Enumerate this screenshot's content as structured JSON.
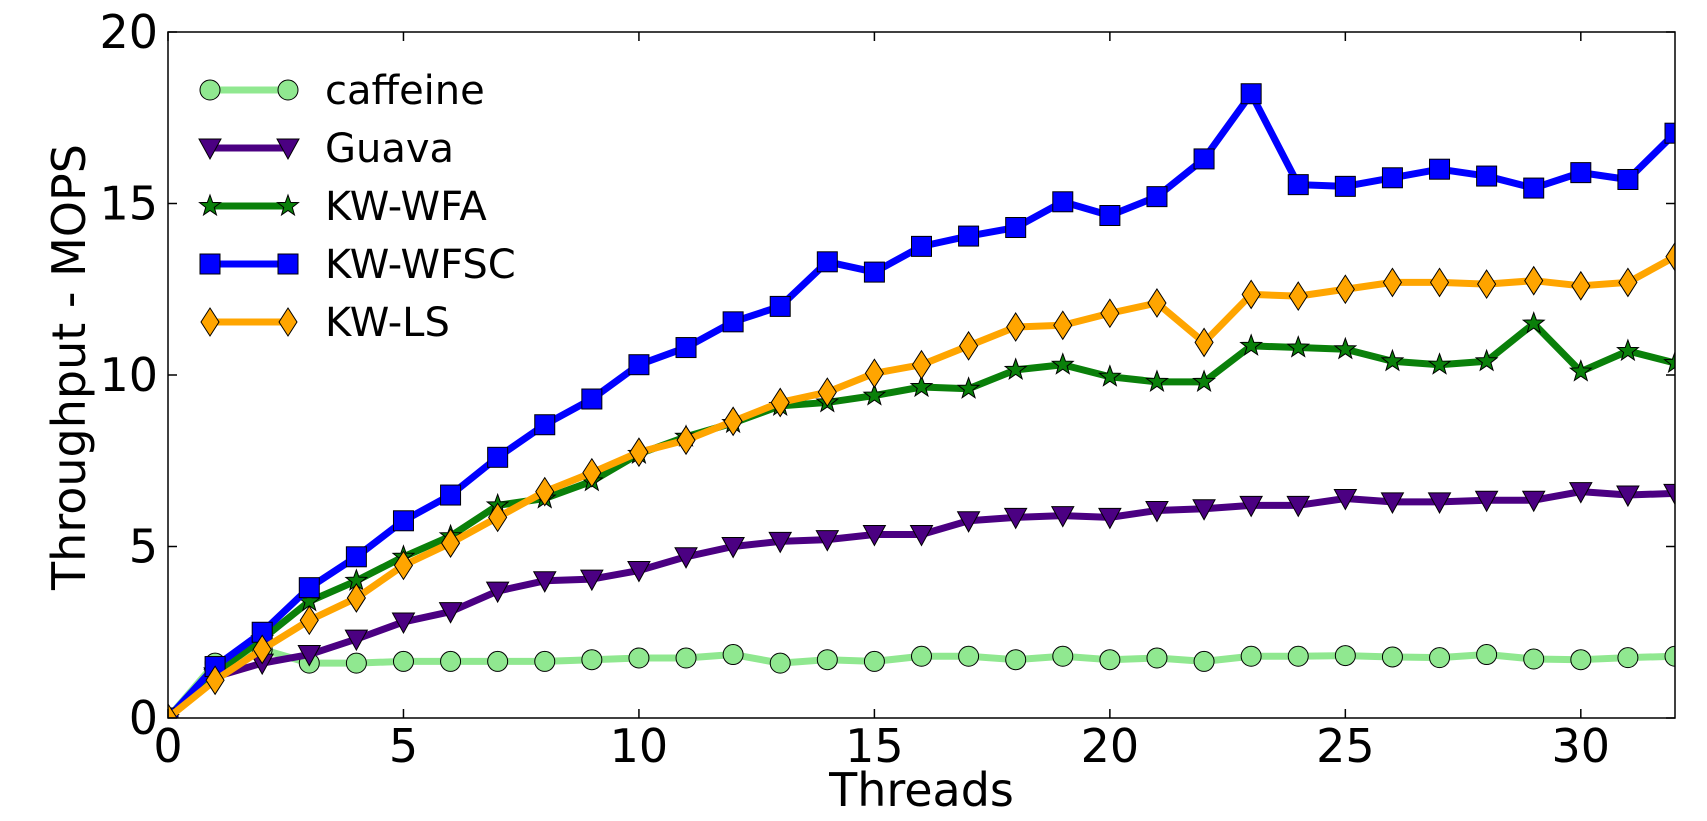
{
  "chart_data": {
    "type": "line",
    "title": "",
    "xlabel": "Threads",
    "ylabel": "Throughput - MOPS",
    "xlim": [
      0,
      32
    ],
    "ylim": [
      0,
      20
    ],
    "xticks": [
      0,
      5,
      10,
      15,
      20,
      25,
      30
    ],
    "yticks": [
      0,
      5,
      10,
      15,
      20
    ],
    "legend_position": "top-left",
    "x": [
      0,
      1,
      2,
      3,
      4,
      5,
      6,
      7,
      8,
      9,
      10,
      11,
      12,
      13,
      14,
      15,
      16,
      17,
      18,
      19,
      20,
      21,
      22,
      23,
      24,
      25,
      26,
      27,
      28,
      29,
      30,
      31,
      32
    ],
    "series": [
      {
        "name": "caffeine",
        "color": "#90e890",
        "marker": "circle",
        "values": [
          0,
          1.6,
          2.0,
          1.6,
          1.6,
          1.65,
          1.65,
          1.65,
          1.65,
          1.7,
          1.75,
          1.75,
          1.85,
          1.6,
          1.7,
          1.65,
          1.8,
          1.8,
          1.7,
          1.8,
          1.7,
          1.75,
          1.65,
          1.8,
          1.8,
          1.82,
          1.78,
          1.76,
          1.85,
          1.72,
          1.7,
          1.76,
          1.8
        ]
      },
      {
        "name": "Guava",
        "color": "#4b0082",
        "marker": "triangle-down",
        "values": [
          0,
          1.2,
          1.6,
          1.85,
          2.3,
          2.8,
          3.1,
          3.7,
          4.0,
          4.05,
          4.3,
          4.7,
          5.0,
          5.15,
          5.2,
          5.35,
          5.35,
          5.75,
          5.85,
          5.9,
          5.85,
          6.05,
          6.1,
          6.2,
          6.2,
          6.4,
          6.3,
          6.3,
          6.35,
          6.35,
          6.6,
          6.5,
          6.55
        ]
      },
      {
        "name": "KW-WFA",
        "color": "#0a800a",
        "marker": "star",
        "values": [
          0,
          1.3,
          2.3,
          3.4,
          4.0,
          4.7,
          5.3,
          6.2,
          6.4,
          6.9,
          7.7,
          8.2,
          8.6,
          9.1,
          9.2,
          9.4,
          9.65,
          9.6,
          10.15,
          10.3,
          9.95,
          9.8,
          9.8,
          10.85,
          10.8,
          10.75,
          10.4,
          10.3,
          10.4,
          11.5,
          10.1,
          10.7,
          10.35
        ]
      },
      {
        "name": "KW-WFSC",
        "color": "#0000ff",
        "marker": "square",
        "values": [
          0,
          1.5,
          2.5,
          3.8,
          4.7,
          5.75,
          6.5,
          7.6,
          8.55,
          9.3,
          10.3,
          10.8,
          11.55,
          12.0,
          13.3,
          13.0,
          13.75,
          14.05,
          14.3,
          15.05,
          14.65,
          15.2,
          16.3,
          18.2,
          15.55,
          15.5,
          15.75,
          16.0,
          15.8,
          15.45,
          15.9,
          15.7,
          17.05
        ]
      },
      {
        "name": "KW-LS",
        "color": "#ffa500",
        "marker": "diamond",
        "values": [
          0,
          1.1,
          2.0,
          2.85,
          3.5,
          4.45,
          5.1,
          5.85,
          6.6,
          7.15,
          7.75,
          8.1,
          8.65,
          9.2,
          9.5,
          10.05,
          10.3,
          10.85,
          11.4,
          11.45,
          11.8,
          12.1,
          10.95,
          12.35,
          12.3,
          12.5,
          12.7,
          12.7,
          12.65,
          12.75,
          12.6,
          12.7,
          13.45
        ]
      }
    ]
  }
}
